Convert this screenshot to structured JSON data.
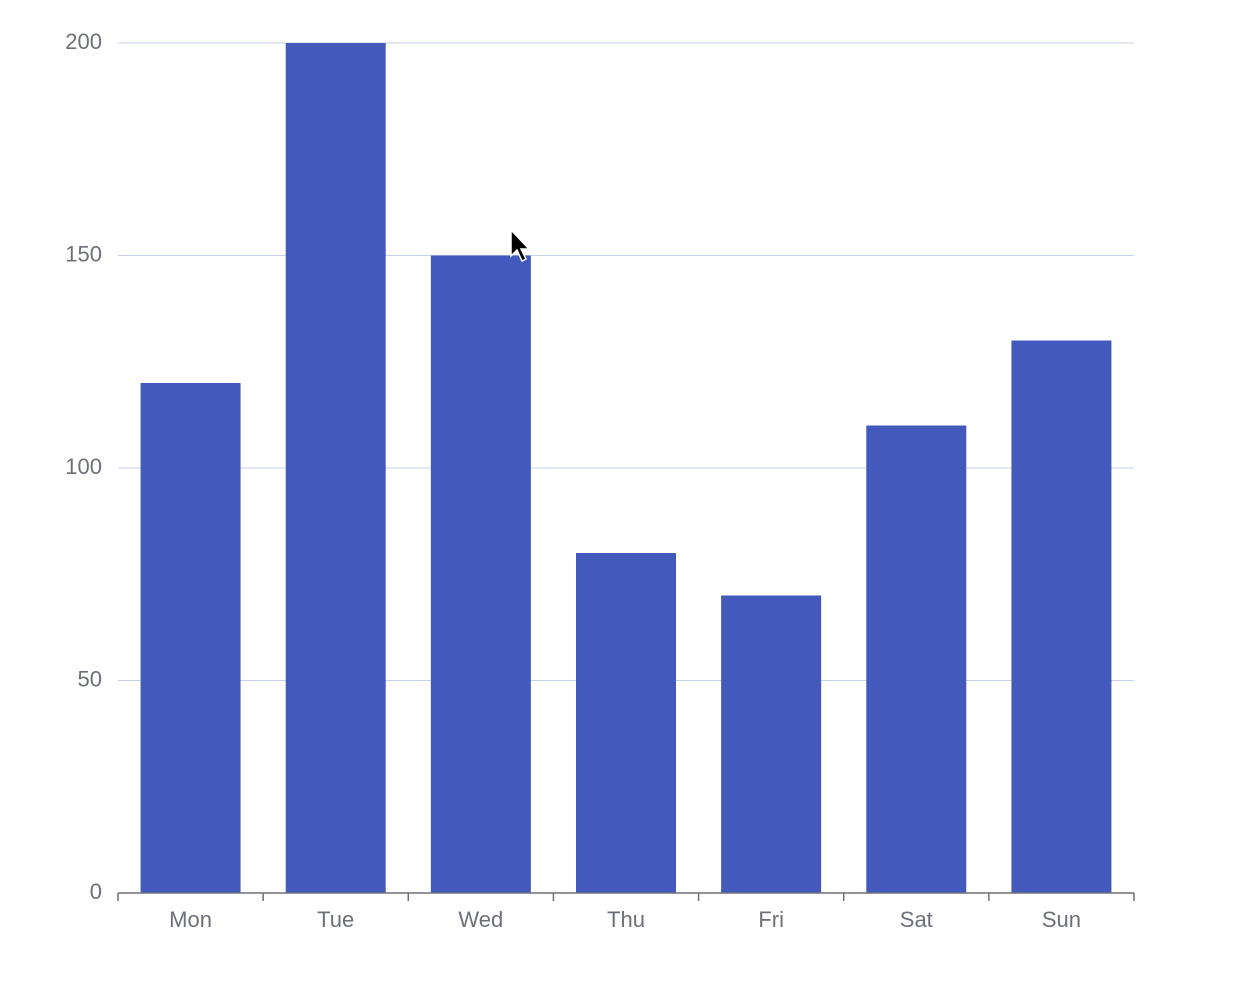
{
  "chart_data": {
    "type": "bar",
    "categories": [
      "Mon",
      "Tue",
      "Wed",
      "Thu",
      "Fri",
      "Sat",
      "Sun"
    ],
    "values": [
      120,
      200,
      150,
      80,
      70,
      110,
      130
    ],
    "color": "#4459bc",
    "ylim": [
      0,
      200
    ],
    "yticks": [
      0,
      50,
      100,
      150,
      200
    ],
    "grid": true
  }
}
